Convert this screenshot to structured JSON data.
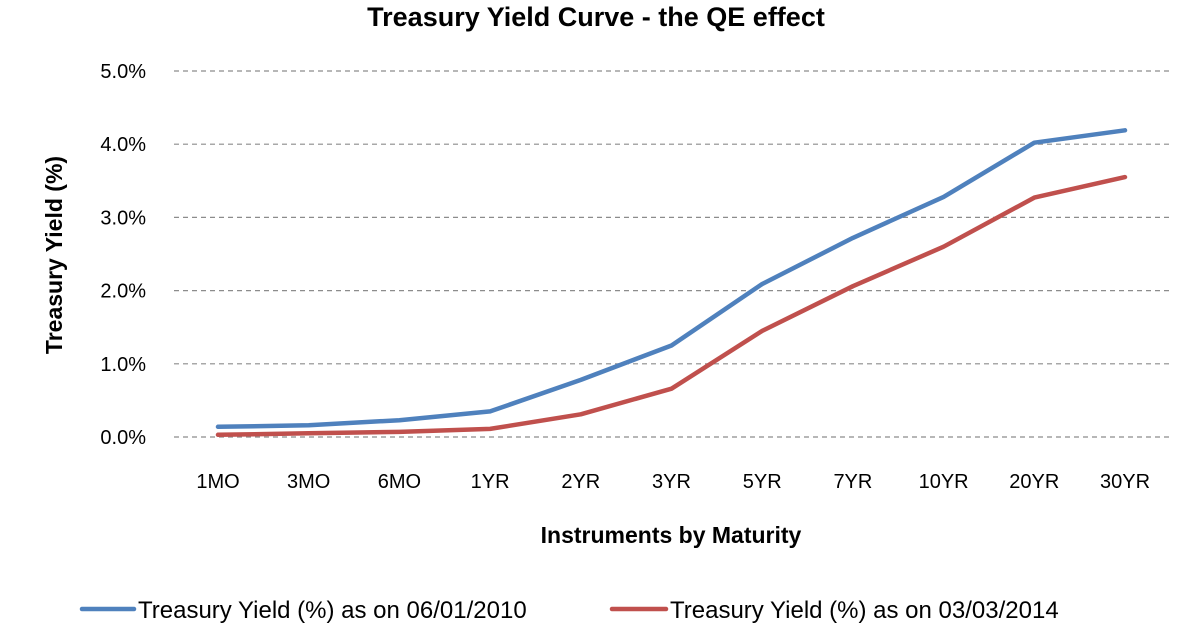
{
  "chart_data": {
    "type": "line",
    "title": "Treasury Yield Curve - the QE effect",
    "xlabel": "Instruments by Maturity",
    "ylabel": "Treasury Yield (%)",
    "categories": [
      "1MO",
      "3MO",
      "6MO",
      "1YR",
      "2YR",
      "3YR",
      "5YR",
      "7YR",
      "10YR",
      "20YR",
      "30YR"
    ],
    "ylim": [
      0,
      5
    ],
    "yticks": [
      0,
      1,
      2,
      3,
      4,
      5
    ],
    "ytick_labels": [
      "0.0%",
      "1.0%",
      "2.0%",
      "3.0%",
      "4.0%",
      "5.0%"
    ],
    "grid": true,
    "legend_position": "bottom",
    "series": [
      {
        "name": "Treasury Yield (%) as on 06/01/2010",
        "color": "#4f81bd",
        "values": [
          0.14,
          0.16,
          0.23,
          0.35,
          0.78,
          1.25,
          2.09,
          2.72,
          3.28,
          4.02,
          4.19
        ]
      },
      {
        "name": "Treasury Yield (%) as on 03/03/2014",
        "color": "#c0504d",
        "values": [
          0.03,
          0.05,
          0.07,
          0.11,
          0.31,
          0.66,
          1.45,
          2.06,
          2.6,
          3.27,
          3.55
        ]
      }
    ]
  }
}
